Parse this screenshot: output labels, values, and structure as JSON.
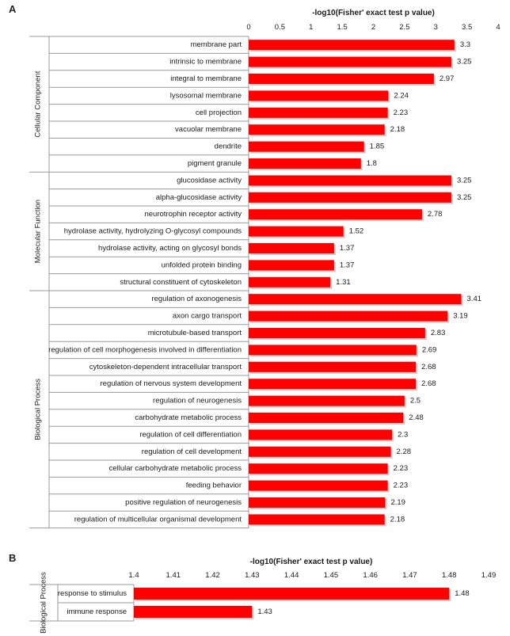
{
  "panels": [
    {
      "letter": "A"
    },
    {
      "letter": "B"
    }
  ],
  "chart_data": [
    {
      "type": "bar",
      "orientation": "horizontal",
      "title": "",
      "xlabel": "-log10(Fisher' exact test p value)",
      "ylabel": "",
      "xlim": [
        0,
        4
      ],
      "ticks": [
        "0",
        "0.5",
        "1",
        "1.5",
        "2",
        "2.5",
        "3",
        "3.5",
        "4"
      ],
      "groups": [
        {
          "name": "Cellular Component",
          "count": 8
        },
        {
          "name": "Molecular Function",
          "count": 7
        },
        {
          "name": "Biological Process",
          "count": 14
        }
      ],
      "categories": [
        "membrane part",
        "intrinsic to membrane",
        "integral to membrane",
        "lysosomal membrane",
        "cell projection",
        "vacuolar membrane",
        "dendrite",
        "pigment granule",
        "glucosidase activity",
        "alpha-glucosidase activity",
        "neurotrophin receptor activity",
        "hydrolase activity, hydrolyzing O-glycosyl compounds",
        "hydrolase activity, acting on glycosyl bonds",
        "unfolded protein binding",
        "structural constituent of cytoskeleton",
        "regulation of axonogenesis",
        "axon cargo transport",
        "microtubule-based transport",
        "regulation of cell morphogenesis involved in differentiation",
        "cytoskeleton-dependent intracellular transport",
        "regulation of nervous system development",
        "regulation of neurogenesis",
        "carbohydrate metabolic process",
        "regulation of cell differentiation",
        "regulation of cell development",
        "cellular carbohydrate metabolic process",
        "feeding behavior",
        "positive regulation of neurogenesis",
        "regulation of multicellular organismal development"
      ],
      "values": [
        3.3,
        3.25,
        2.97,
        2.24,
        2.23,
        2.18,
        1.85,
        1.8,
        3.25,
        3.25,
        2.78,
        1.52,
        1.37,
        1.37,
        1.31,
        3.41,
        3.19,
        2.83,
        2.69,
        2.68,
        2.68,
        2.5,
        2.48,
        2.3,
        2.28,
        2.23,
        2.23,
        2.19,
        2.18
      ],
      "value_labels": [
        "3.3",
        "3.25",
        "2.97",
        "2.24",
        "2.23",
        "2.18",
        "1.85",
        "1.8",
        "3.25",
        "3.25",
        "2.78",
        "1.52",
        "1.37",
        "1.37",
        "1.31",
        "3.41",
        "3.19",
        "2.83",
        "2.69",
        "2.68",
        "2.68",
        "2.5",
        "2.48",
        "2.3",
        "2.28",
        "2.23",
        "2.23",
        "2.19",
        "2.18"
      ],
      "bar_color": "#ff0000",
      "grid": false,
      "legend": "none"
    },
    {
      "type": "bar",
      "orientation": "horizontal",
      "title": "",
      "xlabel": "-log10(Fisher' exact test p value)",
      "ylabel": "",
      "xlim": [
        1.4,
        1.49
      ],
      "ticks": [
        "1.4",
        "1.41",
        "1.42",
        "1.43",
        "1.44",
        "1.45",
        "1.46",
        "1.47",
        "1.48",
        "1.49"
      ],
      "groups": [
        {
          "name": "Biological Process",
          "count": 2
        }
      ],
      "categories": [
        "response to stimulus",
        "immune response"
      ],
      "values": [
        1.48,
        1.43
      ],
      "value_labels": [
        "1.48",
        "1.43"
      ],
      "bar_color": "#ff0000",
      "grid": false,
      "legend": "none"
    }
  ]
}
